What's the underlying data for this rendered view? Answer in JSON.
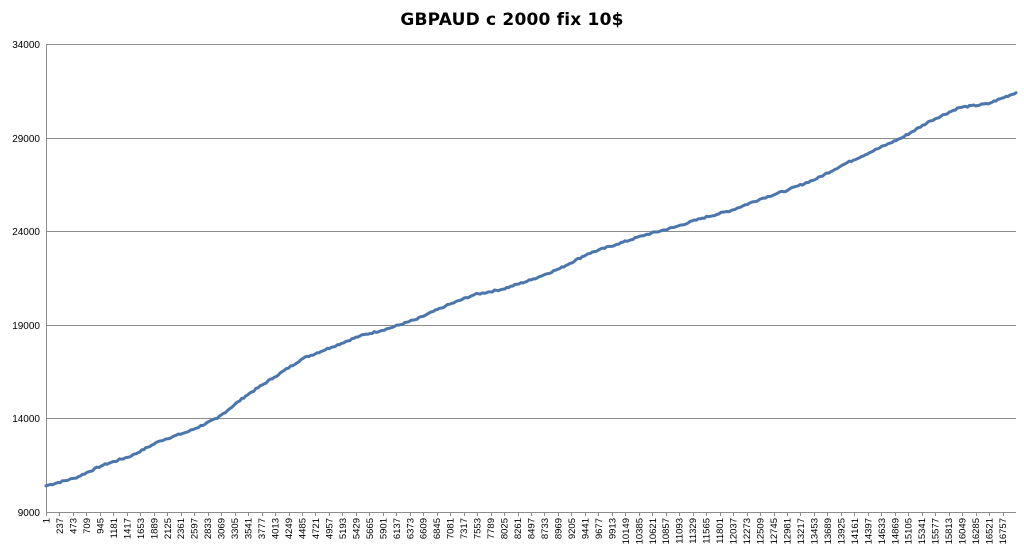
{
  "chart_data": {
    "type": "line",
    "title": "GBPAUD c 2000 fix 10$",
    "xlabel": "",
    "ylabel": "",
    "ylim": [
      9000,
      34000
    ],
    "xlim": [
      1,
      16993
    ],
    "y_ticks": [
      "9000",
      "14000",
      "19000",
      "24000",
      "29000",
      "34000"
    ],
    "x_ticks": [
      "1",
      "237",
      "473",
      "709",
      "945",
      "1181",
      "1417",
      "1653",
      "1889",
      "2125",
      "2361",
      "2597",
      "2833",
      "3069",
      "3305",
      "3541",
      "3777",
      "4013",
      "4249",
      "4485",
      "4721",
      "4957",
      "5193",
      "5429",
      "5665",
      "5901",
      "6137",
      "6373",
      "6609",
      "6845",
      "7081",
      "7317",
      "7553",
      "7789",
      "8025",
      "8261",
      "8497",
      "8733",
      "8969",
      "9205",
      "9441",
      "9677",
      "9913",
      "10149",
      "10385",
      "10621",
      "10857",
      "11093",
      "11329",
      "11565",
      "11801",
      "12037",
      "12273",
      "12509",
      "12745",
      "12981",
      "13217",
      "13453",
      "13689",
      "13925",
      "14161",
      "14397",
      "14633",
      "14869",
      "15105",
      "15341",
      "15577",
      "15813",
      "16049",
      "16285",
      "16521",
      "16757"
    ],
    "grid": true,
    "legend": "none",
    "series": [
      {
        "color": "#4a76ac",
        "x": [
          1,
          500,
          1000,
          1500,
          2000,
          2500,
          3000,
          3500,
          4000,
          4500,
          5000,
          5500,
          6000,
          6500,
          7000,
          7500,
          8000,
          8500,
          9000,
          9500,
          10000,
          10500,
          11000,
          11500,
          12000,
          12500,
          13000,
          13500,
          14000,
          14500,
          15000,
          15500,
          16000,
          16500,
          16993
        ],
        "y": [
          10400,
          10800,
          11500,
          12000,
          12800,
          13300,
          14000,
          15200,
          16200,
          17200,
          17800,
          18400,
          18800,
          19300,
          20000,
          20600,
          20900,
          21400,
          22000,
          22800,
          23300,
          23800,
          24200,
          24700,
          25100,
          25700,
          26200,
          26800,
          27600,
          28300,
          29000,
          29900,
          30600,
          30800,
          31400
        ]
      }
    ]
  }
}
